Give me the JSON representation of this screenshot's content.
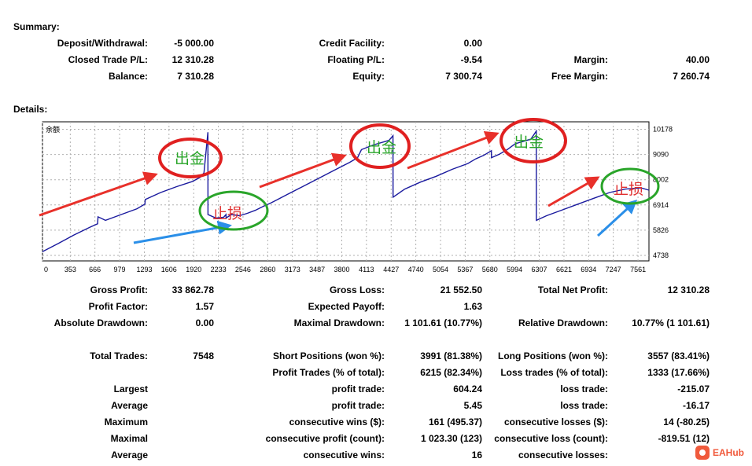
{
  "summary": {
    "title": "Summary:",
    "deposit_label": "Deposit/Withdrawal:",
    "deposit_value": "-5 000.00",
    "credit_label": "Credit Facility:",
    "credit_value": "0.00",
    "closed_label": "Closed Trade P/L:",
    "closed_value": "12 310.28",
    "floating_label": "Floating P/L:",
    "floating_value": "-9.54",
    "margin_label": "Margin:",
    "margin_value": "40.00",
    "balance_label": "Balance:",
    "balance_value": "7 310.28",
    "equity_label": "Equity:",
    "equity_value": "7 300.74",
    "free_margin_label": "Free Margin:",
    "free_margin_value": "7 260.74"
  },
  "details": {
    "title": "Details:",
    "gross_profit_label": "Gross Profit:",
    "gross_profit_value": "33 862.78",
    "gross_loss_label": "Gross Loss:",
    "gross_loss_value": "21 552.50",
    "net_profit_label": "Total Net Profit:",
    "net_profit_value": "12 310.28",
    "profit_factor_label": "Profit Factor:",
    "profit_factor_value": "1.57",
    "expected_payoff_label": "Expected Payoff:",
    "expected_payoff_value": "1.63",
    "abs_dd_label": "Absolute Drawdown:",
    "abs_dd_value": "0.00",
    "max_dd_label": "Maximal Drawdown:",
    "max_dd_value": "1 101.61 (10.77%)",
    "rel_dd_label": "Relative Drawdown:",
    "rel_dd_value": "10.77% (1 101.61)",
    "total_trades_label": "Total Trades:",
    "total_trades_value": "7548",
    "short_label": "Short Positions (won %):",
    "short_value": "3991 (81.38%)",
    "long_label": "Long Positions (won %):",
    "long_value": "3557 (83.41%)",
    "profit_trades_label": "Profit Trades (% of total):",
    "profit_trades_value": "6215 (82.34%)",
    "loss_trades_label": "Loss trades (% of total):",
    "loss_trades_value": "1333 (17.66%)",
    "largest_label": "Largest",
    "largest_profit_label": "profit trade:",
    "largest_profit_value": "604.24",
    "largest_loss_label": "loss trade:",
    "largest_loss_value": "-215.07",
    "average_label": "Average",
    "average_profit_label": "profit trade:",
    "average_profit_value": "5.45",
    "average_loss_label": "loss trade:",
    "average_loss_value": "-16.17",
    "maximum_label": "Maximum",
    "max_cons_wins_label": "consecutive wins ($):",
    "max_cons_wins_value": "161 (495.37)",
    "max_cons_losses_label": "consecutive losses ($):",
    "max_cons_losses_value": "14 (-80.25)",
    "maximal_label": "Maximal",
    "maximal_profit_label": "consecutive profit (count):",
    "maximal_profit_value": "1 023.30 (123)",
    "maximal_loss_label": "consecutive loss (count):",
    "maximal_loss_value": "-819.51 (12)",
    "average2_label": "Average",
    "avg_cons_wins_label": "consecutive wins:",
    "avg_cons_wins_value": "16",
    "avg_cons_losses_label": "consecutive losses:",
    "avg_cons_losses_value": ""
  },
  "chart_data": {
    "type": "line",
    "title": "余额",
    "x_ticks": [
      "0",
      "353",
      "666",
      "979",
      "1293",
      "1606",
      "1920",
      "2233",
      "2546",
      "2860",
      "3173",
      "3487",
      "3800",
      "4113",
      "4427",
      "4740",
      "5054",
      "5367",
      "5680",
      "5994",
      "6307",
      "6621",
      "6934",
      "7247",
      "7561"
    ],
    "y_ticks": [
      "10178",
      "9090",
      "8002",
      "6914",
      "5826",
      "4738"
    ],
    "xlim": [
      0,
      7700
    ],
    "ylim": [
      4500,
      10500
    ],
    "series": [
      {
        "name": "Balance",
        "color": "#1a1a9e",
        "x": [
          0,
          200,
          400,
          600,
          700,
          705,
          800,
          1000,
          1200,
          1300,
          1305,
          1500,
          1700,
          1900,
          2000,
          2050,
          2100,
          2101,
          2200,
          2300,
          2330,
          2331,
          2400,
          2500,
          2600,
          2700,
          2800,
          2900,
          3100,
          3300,
          3500,
          3700,
          3900,
          4000,
          4050,
          4200,
          4400,
          4450,
          4451,
          4600,
          4800,
          5000,
          5200,
          5400,
          5500,
          5600,
          5700,
          5701,
          5800,
          5900,
          6000,
          6100,
          6200,
          6270,
          6271,
          6400,
          6600,
          6800,
          7000,
          7200,
          7400,
          7600,
          7700
        ],
        "y": [
          4900,
          5250,
          5620,
          5950,
          6100,
          6400,
          6250,
          6500,
          6750,
          6950,
          7150,
          7450,
          7700,
          7920,
          8100,
          8300,
          10050,
          6500,
          6350,
          6380,
          6500,
          6350,
          6500,
          6450,
          6550,
          6680,
          6850,
          7000,
          7350,
          7700,
          8050,
          8400,
          8750,
          8950,
          9300,
          9500,
          9700,
          9900,
          7250,
          7600,
          7900,
          8150,
          8450,
          8700,
          8900,
          9050,
          9250,
          8950,
          9100,
          9300,
          9550,
          9650,
          9750,
          10100,
          6250,
          6450,
          6700,
          6950,
          7200,
          7450,
          7600,
          7650,
          7550
        ]
      }
    ],
    "annotations": [
      {
        "type": "circle",
        "color": "#e02020",
        "text": "出金",
        "text_color": "#2aa52a"
      },
      {
        "type": "circle",
        "color": "#2aa52a",
        "text": "止损",
        "text_color": "#e03030"
      },
      {
        "type": "circle",
        "color": "#e02020",
        "text": "出金",
        "text_color": "#2aa52a"
      },
      {
        "type": "circle",
        "color": "#e02020",
        "text": "出金",
        "text_color": "#2aa52a"
      },
      {
        "type": "circle",
        "color": "#2aa52a",
        "text": "止损",
        "text_color": "#e03030"
      }
    ]
  },
  "watermark": {
    "text": "EAHub"
  }
}
